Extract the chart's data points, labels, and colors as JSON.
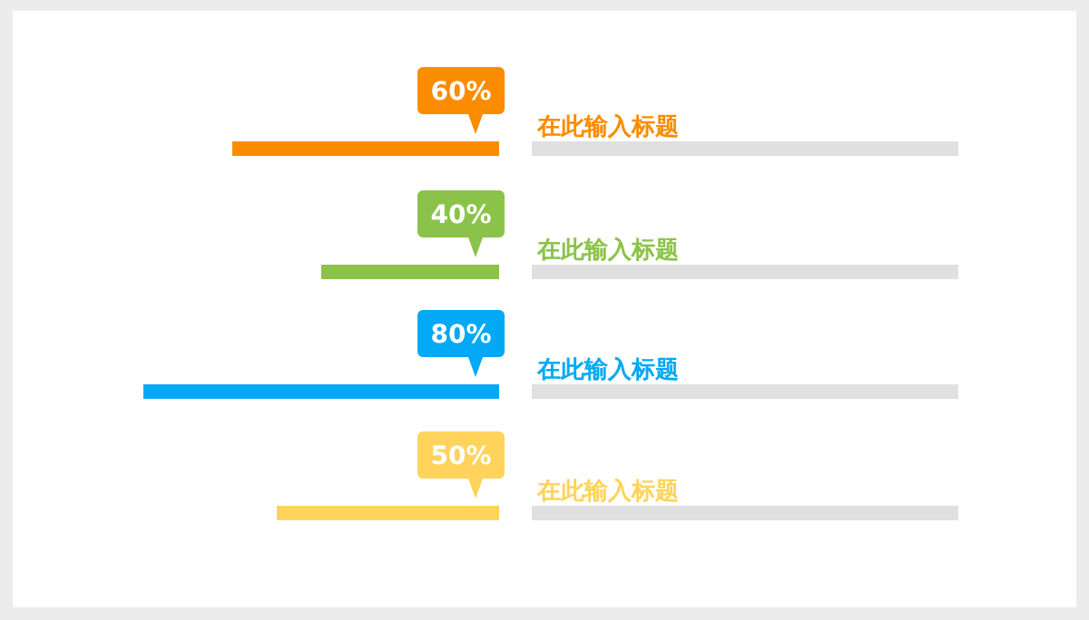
{
  "chart_data": {
    "type": "bar",
    "orientation": "horizontal",
    "categories": [
      "在此输入标题",
      "在此输入标题",
      "在此输入标题",
      "在此输入标题"
    ],
    "values": [
      60,
      40,
      80,
      50
    ],
    "colors": [
      "#fb8c00",
      "#8bc34a",
      "#03a9f4",
      "#ffd35c"
    ],
    "value_labels": [
      "60%",
      "40%",
      "80%",
      "50%"
    ]
  }
}
